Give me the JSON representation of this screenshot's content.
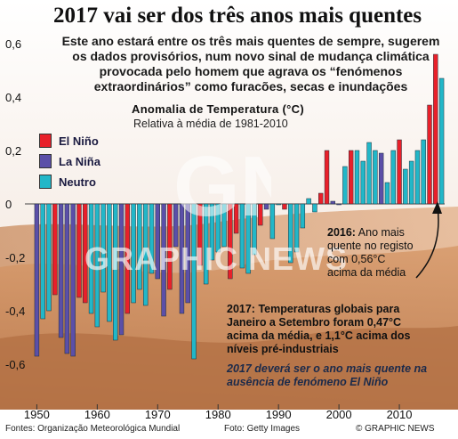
{
  "title": "2017 vai ser dos três anos mais quentes",
  "subtitle": "Este ano estará entre os três mais quentes de sempre, sugerem os dados provisórios, num novo sinal de mudança climática provocada pelo homem que agrava os “fenómenos extraordinários” como furacões, secas e inundações",
  "legend": {
    "title": "Anomalia de Temperatura (°C)",
    "subtitle": "Relativa à média de 1981-2010",
    "items": [
      {
        "label": "El Niño",
        "color": "#e8202a"
      },
      {
        "label": "La Niña",
        "color": "#5b4fa8"
      },
      {
        "label": "Neutro",
        "color": "#22b7c8"
      }
    ]
  },
  "notes": {
    "n2016_year": "2016:",
    "n2016_text": "Ano mais quente no registo com 0,56°C acima da média",
    "n2017_text": "2017: Temperaturas globais para Janeiro a Setembro foram 0,47°C acima da média, e 1,1°C acima dos níveis pré-industriais",
    "n2017_italic": "2017 deverá ser o ano mais quente na ausência de fenómeno El Niño"
  },
  "footer": {
    "source": "Fontes: Organização Meteorológica Mundial",
    "photo": "Foto: Getty Images",
    "credit": "© GRAPHIC NEWS"
  },
  "watermark": {
    "logo": "GN",
    "text": "GRAPHIC NEWS"
  },
  "chart_data": {
    "type": "bar",
    "ylim": [
      -0.65,
      0.6
    ],
    "yticks": [
      -0.6,
      -0.4,
      -0.2,
      0,
      0.2,
      0.4,
      0.6
    ],
    "ytick_labels": [
      "-0,6",
      "-0,4",
      "-0,2",
      "0",
      "0,2",
      "0,4",
      "0,6"
    ],
    "xticks": [
      1950,
      1960,
      1970,
      1980,
      1990,
      2000,
      2010
    ],
    "categories": [
      1950,
      1951,
      1952,
      1953,
      1954,
      1955,
      1956,
      1957,
      1958,
      1959,
      1960,
      1961,
      1962,
      1963,
      1964,
      1965,
      1966,
      1967,
      1968,
      1969,
      1970,
      1971,
      1972,
      1973,
      1974,
      1975,
      1976,
      1977,
      1978,
      1979,
      1980,
      1981,
      1982,
      1983,
      1984,
      1985,
      1986,
      1987,
      1988,
      1989,
      1990,
      1991,
      1992,
      1993,
      1994,
      1995,
      1996,
      1997,
      1998,
      1999,
      2000,
      2001,
      2002,
      2003,
      2004,
      2005,
      2006,
      2007,
      2008,
      2009,
      2010,
      2011,
      2012,
      2013,
      2014,
      2015,
      2016,
      2017
    ],
    "values": [
      -0.57,
      -0.43,
      -0.4,
      -0.34,
      -0.5,
      -0.56,
      -0.57,
      -0.35,
      -0.37,
      -0.41,
      -0.46,
      -0.33,
      -0.44,
      -0.51,
      -0.49,
      -0.41,
      -0.37,
      -0.32,
      -0.38,
      -0.26,
      -0.28,
      -0.42,
      -0.32,
      -0.16,
      -0.41,
      -0.37,
      -0.58,
      -0.23,
      -0.3,
      -0.21,
      -0.18,
      -0.16,
      -0.28,
      -0.11,
      -0.24,
      -0.26,
      -0.19,
      -0.08,
      -0.02,
      -0.13,
      0.0,
      -0.02,
      -0.22,
      -0.18,
      -0.09,
      0.02,
      -0.03,
      0.04,
      0.2,
      0.01,
      0.0,
      0.14,
      0.2,
      0.2,
      0.16,
      0.23,
      0.2,
      0.19,
      0.08,
      0.2,
      0.24,
      0.13,
      0.16,
      0.2,
      0.24,
      0.37,
      0.56,
      0.47
    ],
    "phase": [
      "la",
      "ne",
      "ne",
      "el",
      "la",
      "la",
      "la",
      "el",
      "el",
      "ne",
      "ne",
      "ne",
      "ne",
      "ne",
      "la",
      "el",
      "ne",
      "ne",
      "ne",
      "ne",
      "la",
      "la",
      "el",
      "la",
      "la",
      "la",
      "ne",
      "el",
      "ne",
      "ne",
      "ne",
      "ne",
      "el",
      "el",
      "ne",
      "ne",
      "ne",
      "el",
      "la",
      "ne",
      "ne",
      "el",
      "ne",
      "ne",
      "ne",
      "ne",
      "ne",
      "el",
      "el",
      "la",
      "la",
      "ne",
      "el",
      "ne",
      "ne",
      "ne",
      "ne",
      "la",
      "ne",
      "ne",
      "el",
      "ne",
      "ne",
      "ne",
      "ne",
      "el",
      "el",
      "ne"
    ]
  }
}
